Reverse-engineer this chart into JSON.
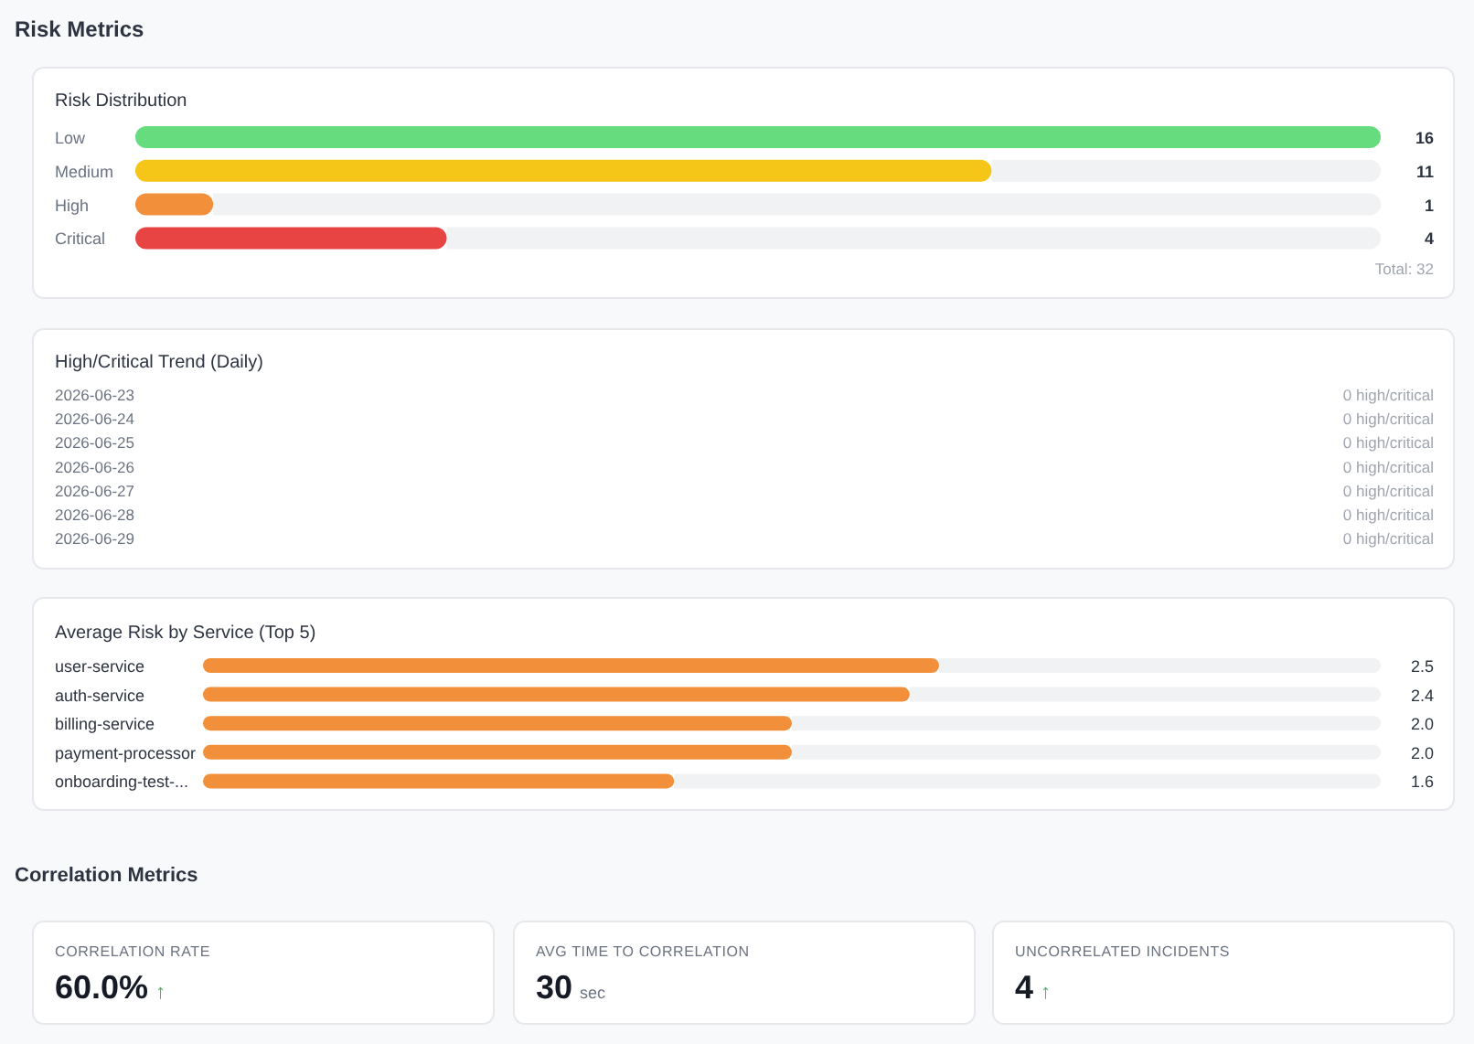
{
  "chart_data": [
    {
      "type": "bar",
      "orientation": "horizontal",
      "title": "Risk Metrics",
      "subtitle": "Risk Distribution",
      "categories": [
        "Low",
        "Medium",
        "High",
        "Critical"
      ],
      "values": [
        16,
        11,
        1,
        4
      ],
      "colors": [
        "#66dc7f",
        "#f5c518",
        "#f28f3b",
        "#e84444"
      ],
      "xlim": [
        0,
        16
      ],
      "data_labels": true,
      "tick_labels": "y",
      "annotations": [
        "Total: 32"
      ]
    },
    {
      "type": "other",
      "title": "High/Critical Trend (Daily)",
      "categories": [
        "2026-06-23",
        "2026-06-24",
        "2026-06-25",
        "2026-06-26",
        "2026-06-27",
        "2026-06-28",
        "2026-06-29"
      ],
      "value_labels": [
        "0 high/critical",
        "0 high/critical",
        "0 high/critical",
        "0 high/critical",
        "0 high/critical",
        "0 high/critical",
        "0 high/critical"
      ]
    },
    {
      "type": "bar",
      "orientation": "horizontal",
      "title": "Average Risk by Service (Top 5)",
      "categories": [
        "user-service",
        "auth-service",
        "billing-service",
        "payment-processor",
        "onboarding-test-..."
      ],
      "values": [
        2.5,
        2.4,
        2.0,
        2.0,
        1.6
      ],
      "color": "#f28f3b",
      "xlim": [
        0,
        4
      ],
      "value_labels": [
        "2.5",
        "2.4",
        "2.0",
        "2.0",
        "1.6"
      ],
      "tick_labels": "y"
    },
    {
      "type": "other",
      "title": "Correlation Metrics",
      "categories": [
        "CORRELATION RATE",
        "AVG TIME TO CORRELATION",
        "UNCORRELATED INCIDENTS"
      ],
      "value_labels": [
        "60.0% ↑",
        "30 sec",
        "4 ↑"
      ]
    }
  ]
}
